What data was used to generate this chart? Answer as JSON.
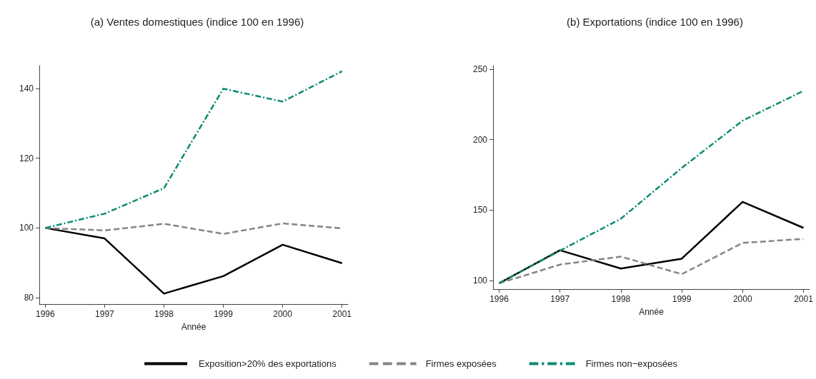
{
  "chart_data": [
    {
      "type": "line",
      "title": "(a) Ventes domestiques (indice 100 en 1996)",
      "xlabel": "Année",
      "x": [
        1996,
        1997,
        1998,
        1999,
        2000,
        2001
      ],
      "xlim": [
        1995.9,
        2001.1
      ],
      "xticks": [
        1996,
        1997,
        1998,
        1999,
        2000,
        2001
      ],
      "ylim": [
        78.2,
        146.5
      ],
      "yticks": [
        80,
        100,
        120,
        140
      ],
      "grid": false,
      "legend": "bottom",
      "marker": "none",
      "series": [
        {
          "name": "Exposition>20% des exportations",
          "color": "#000000",
          "line_style": "solid",
          "values": [
            100,
            97.0,
            81.2,
            86.2,
            95.2,
            89.9
          ]
        },
        {
          "name": "Firmes exposées",
          "color": "#858585",
          "line_style": "dashed",
          "values": [
            100,
            99.3,
            101.2,
            98.3,
            101.3,
            99.9
          ]
        },
        {
          "name": "Firmes non−exposées",
          "color": "#0b8a74",
          "line_style": "dashdot",
          "values": [
            100,
            104.1,
            111.4,
            139.9,
            136.2,
            144.9
          ]
        }
      ]
    },
    {
      "type": "line",
      "title": "(b) Exportations (indice 100 en 1996)",
      "xlabel": "Année",
      "x": [
        1996,
        1997,
        1998,
        1999,
        2000,
        2001
      ],
      "xlim": [
        1995.9,
        2001.1
      ],
      "xticks": [
        1996,
        1997,
        1998,
        1999,
        2000,
        2001
      ],
      "ylim": [
        93.8,
        252.6
      ],
      "yticks": [
        100,
        150,
        200,
        250
      ],
      "grid": false,
      "marker": "none",
      "series": [
        {
          "color": "#000000",
          "line_style": "solid",
          "values": [
            97.9,
            121.4,
            108.4,
            115.4,
            155.8,
            137.3
          ]
        },
        {
          "color": "#858585",
          "line_style": "dashed",
          "values": [
            97.9,
            111.2,
            116.9,
            104.4,
            126.6,
            129.5
          ]
        },
        {
          "color": "#0b8a74",
          "line_style": "dashdot",
          "values": [
            97.9,
            121.1,
            143.8,
            179.9,
            213.5,
            234.7
          ]
        }
      ]
    }
  ]
}
